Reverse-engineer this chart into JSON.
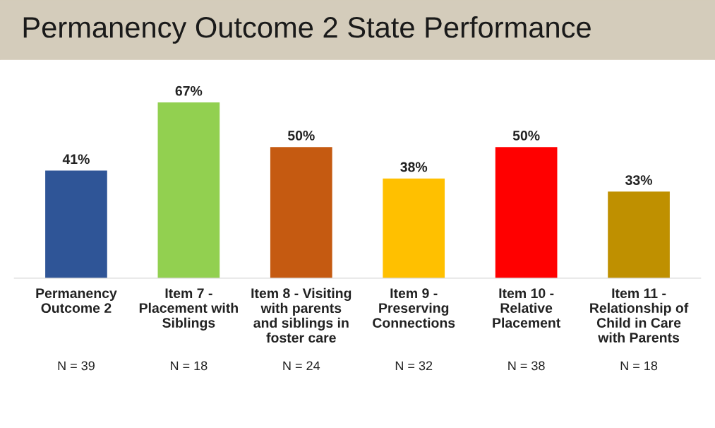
{
  "chart_data": {
    "type": "bar",
    "title": "Permanency Outcome 2 State Performance",
    "categories": [
      "Permanency\nOutcome 2",
      "Item 7 -\nPlacement with\nSiblings",
      "Item 8 - Visiting\nwith parents\nand siblings in\nfoster care",
      "Item 9 -\nPreserving\nConnections",
      "Item 10 -\nRelative\nPlacement",
      "Item 11 -\nRelationship of\nChild in Care\nwith Parents"
    ],
    "values": [
      41,
      67,
      50,
      38,
      50,
      33
    ],
    "colors": [
      "#2f5597",
      "#92d050",
      "#c55a11",
      "#ffc000",
      "#ff0000",
      "#bf9000"
    ],
    "value_labels": [
      "41%",
      "67%",
      "50%",
      "38%",
      "50%",
      "33%"
    ],
    "annotations": [
      "N = 39",
      "N = 18",
      "N = 24",
      "N = 32",
      "N = 38",
      "N = 18"
    ],
    "grid": false,
    "legend": false
  }
}
